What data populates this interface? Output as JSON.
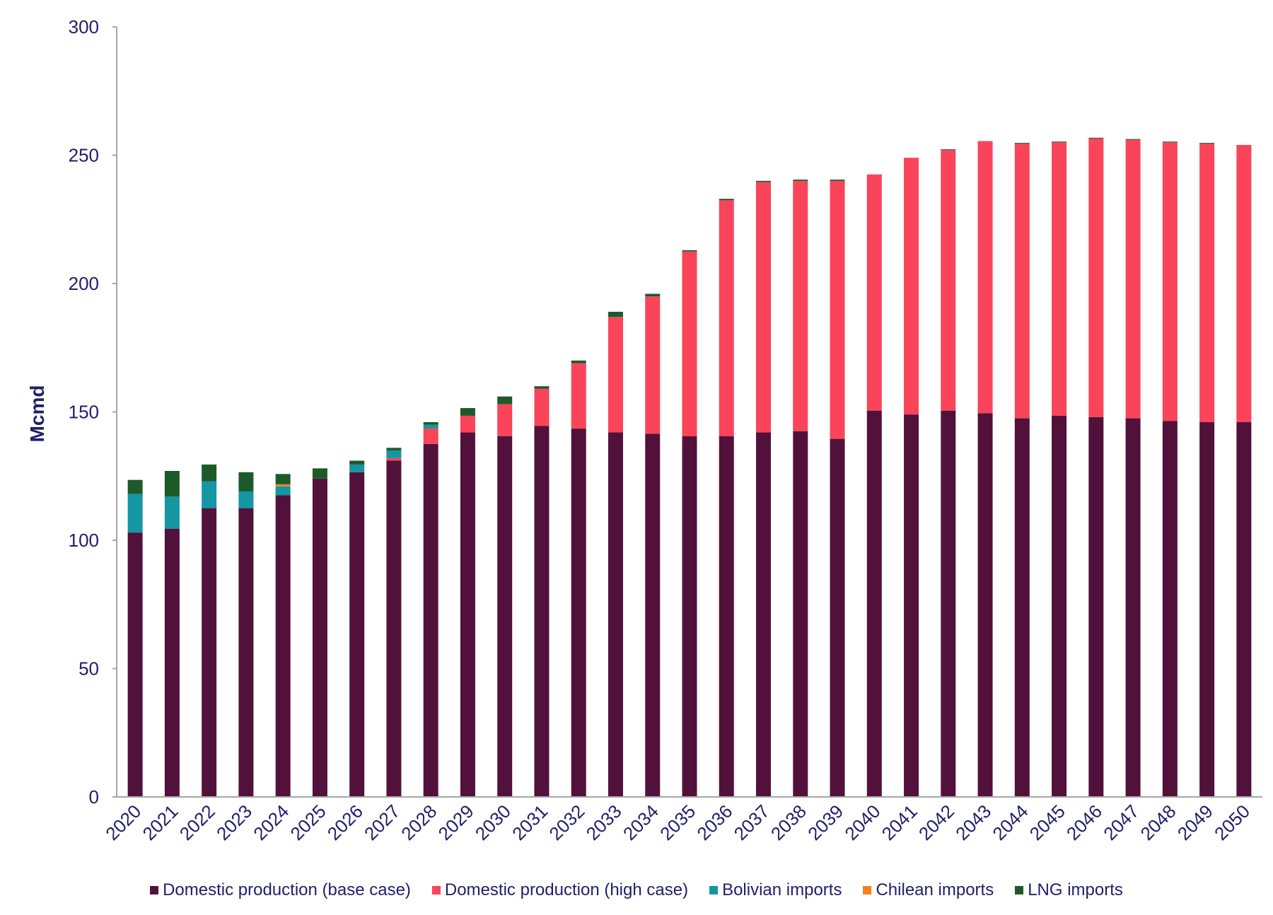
{
  "chart_data": {
    "type": "bar",
    "stacked": true,
    "title": "",
    "xlabel": "",
    "ylabel": "Mcmd",
    "ylim": [
      0,
      300
    ],
    "yticks": [
      0,
      50,
      100,
      150,
      200,
      250,
      300
    ],
    "categories": [
      "2020",
      "2021",
      "2022",
      "2023",
      "2024",
      "2025",
      "2026",
      "2027",
      "2028",
      "2029",
      "2030",
      "2031",
      "2032",
      "2033",
      "2034",
      "2035",
      "2036",
      "2037",
      "2038",
      "2039",
      "2040",
      "2041",
      "2042",
      "2043",
      "2044",
      "2045",
      "2046",
      "2047",
      "2048",
      "2049",
      "2050"
    ],
    "series": [
      {
        "name": "Domestic production (base case)",
        "color": "#52113a",
        "values": [
          103,
          104.5,
          112.5,
          112.5,
          117.5,
          124,
          126.5,
          131,
          137.5,
          142,
          140.5,
          144.5,
          143.5,
          142,
          141.5,
          140.5,
          140.5,
          142,
          142.5,
          139.5,
          150.5,
          149,
          150.5,
          149.5,
          147.5,
          148.5,
          148,
          147.5,
          146.5,
          146,
          146
        ]
      },
      {
        "name": "Domestic production (high case)",
        "color": "#f9445a",
        "values": [
          0,
          0,
          0,
          0,
          0,
          0,
          0,
          1,
          6,
          6.5,
          12.5,
          14.5,
          25.5,
          45,
          53.5,
          72,
          92,
          97.5,
          97.5,
          100.5,
          92,
          100,
          101.5,
          106,
          107,
          106.5,
          108.5,
          108.5,
          108.5,
          108.5,
          108
        ]
      },
      {
        "name": "Bolivian imports",
        "color": "#1496a3",
        "values": [
          15,
          12.5,
          10.5,
          6.5,
          3.5,
          0,
          3,
          3,
          1.5,
          0,
          0,
          0,
          0,
          0,
          0,
          0,
          0,
          0,
          0,
          0,
          0,
          0,
          0,
          0,
          0,
          0,
          0,
          0,
          0,
          0,
          0
        ]
      },
      {
        "name": "Chilean imports",
        "color": "#f58220",
        "values": [
          0,
          0,
          0,
          0,
          0.8,
          0,
          0,
          0,
          0,
          0,
          0,
          0,
          0,
          0,
          0,
          0,
          0,
          0,
          0,
          0,
          0,
          0,
          0,
          0,
          0,
          0,
          0,
          0,
          0,
          0,
          0
        ]
      },
      {
        "name": "LNG imports",
        "color": "#1d5a2a",
        "values": [
          5.5,
          10,
          6.5,
          7.5,
          4,
          4,
          1.5,
          1,
          1,
          3,
          3,
          1,
          1,
          2,
          1,
          0.5,
          0.5,
          0.5,
          0.5,
          0.5,
          0,
          0,
          0.3,
          0,
          0.3,
          0.3,
          0.3,
          0.3,
          0.3,
          0.3,
          0
        ]
      }
    ],
    "legend_position": "bottom",
    "grid": false
  }
}
